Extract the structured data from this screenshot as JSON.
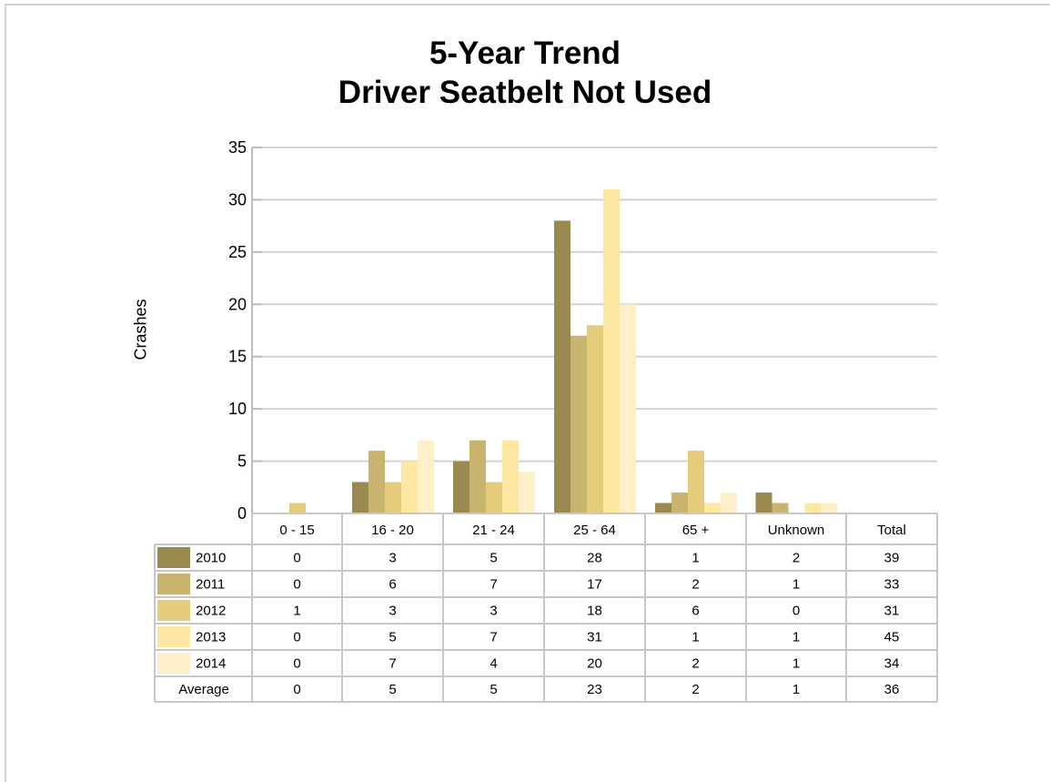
{
  "chart_data": {
    "type": "bar",
    "title": [
      "5-Year Trend",
      "Driver Seatbelt Not Used"
    ],
    "ylabel": "Crashes",
    "xlabel": "",
    "ylim": [
      0,
      35
    ],
    "yticks": [
      0,
      5,
      10,
      15,
      20,
      25,
      30,
      35
    ],
    "grid": true,
    "categories": [
      "0 - 15",
      "16 - 20",
      "21 - 24",
      "25 - 64",
      "65 +",
      "Unknown"
    ],
    "table_columns": [
      "0 - 15",
      "16 - 20",
      "21 - 24",
      "25 - 64",
      "65 +",
      "Unknown",
      "Total"
    ],
    "series": [
      {
        "name": "2010",
        "color": "#9b8a50",
        "values": [
          0,
          3,
          5,
          28,
          1,
          2
        ],
        "total": 39
      },
      {
        "name": "2011",
        "color": "#c9b46f",
        "values": [
          0,
          6,
          7,
          17,
          2,
          1
        ],
        "total": 33
      },
      {
        "name": "2012",
        "color": "#e5cb7c",
        "values": [
          1,
          3,
          3,
          18,
          6,
          0
        ],
        "total": 31
      },
      {
        "name": "2013",
        "color": "#fde7a1",
        "values": [
          0,
          5,
          7,
          31,
          1,
          1
        ],
        "total": 45
      },
      {
        "name": "2014",
        "color": "#fdf0c8",
        "values": [
          0,
          7,
          4,
          20,
          2,
          1
        ],
        "total": 34
      }
    ],
    "average": {
      "name": "Average",
      "values": [
        0,
        5,
        5,
        23,
        2,
        1
      ],
      "total": 36
    }
  }
}
